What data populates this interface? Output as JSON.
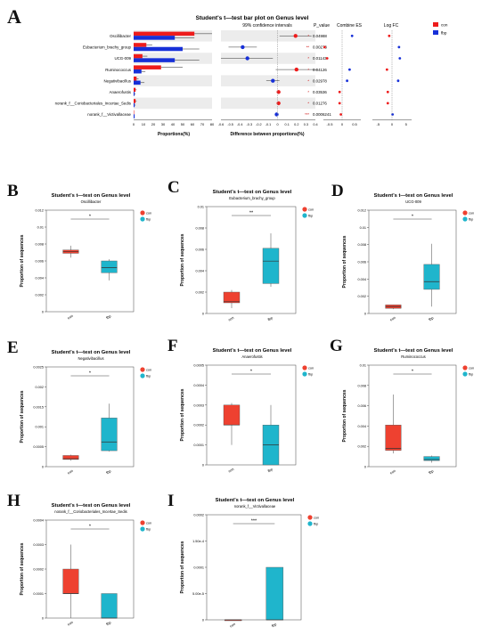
{
  "colors": {
    "con": "#ee4130",
    "fbp": "#1fb5cc",
    "bar_con": "#ee1c1c",
    "bar_fbp": "#1730d8",
    "grid": "#ececec"
  },
  "panel_a": {
    "letter": "A",
    "title": "Student's t—test bar plot on Genus level",
    "ci_title": "99% confidence intervals",
    "legend": {
      "con": "con",
      "fbp": "fbp"
    },
    "col_pvalue": "P_value",
    "col_es": "Combine ES",
    "col_logfc": "Log FC",
    "xlabel_prop": "Proportions(%)",
    "xlabel_diff": "Difference between proportions(%)",
    "prop_ticks": [
      "0",
      "10",
      "20",
      "30",
      "40",
      "50",
      "60",
      "70",
      "80"
    ],
    "diff_ticks": [
      "-0.6",
      "-0.5",
      "-0.4",
      "-0.3",
      "-0.2",
      "-0.1",
      "0",
      "0.1",
      "0.2",
      "0.3",
      "0.4"
    ],
    "es_ticks": [
      "-0.5",
      "0",
      "0.5"
    ],
    "fc_ticks": [
      "-5",
      "0",
      "5"
    ]
  },
  "chart_data": [
    {
      "type": "bar",
      "panel": "A",
      "title": "Student's t—test bar plot on Genus level",
      "xlabel": "Proportions(%)",
      "categories": [
        "Oscillibacter",
        "Eubacterium_brachy_group",
        "UCG-009",
        "Ruminococcus",
        "Negativibacillus",
        "Anaerofustis",
        "norank_f__Coriobacteriales_Incertae_Sedis",
        "norank_f__Victivallaceae"
      ],
      "series": [
        {
          "name": "con",
          "values": [
            62,
            13,
            9,
            28,
            3,
            2,
            2,
            0
          ],
          "err": [
            18,
            6,
            5,
            22,
            2,
            1,
            1,
            0
          ]
        },
        {
          "name": "fbp",
          "values": [
            42,
            50,
            42,
            8,
            7,
            1,
            1,
            1
          ],
          "err": [
            20,
            17,
            25,
            4,
            4,
            1,
            1,
            0
          ]
        }
      ],
      "xlim": [
        0,
        80
      ]
    },
    {
      "type": "scatter",
      "panel": "A",
      "title": "99% confidence intervals",
      "xlabel": "Difference between proportions(%)",
      "categories": [
        "Oscillibacter",
        "Eubacterium_brachy_group",
        "UCG-009",
        "Ruminococcus",
        "Negativibacillus",
        "Anaerofustis",
        "norank_f__Coriobacteriales_Incertae_Sedis",
        "norank_f__Victivallaceae"
      ],
      "diff": [
        0.19,
        -0.37,
        -0.32,
        0.2,
        -0.05,
        0.01,
        0.01,
        -0.01
      ],
      "ci_low": [
        0.02,
        -0.52,
        -0.6,
        -0.02,
        -0.12,
        -0.01,
        -0.01,
        -0.02
      ],
      "ci_high": [
        0.36,
        -0.22,
        -0.05,
        0.42,
        0.02,
        0.03,
        0.03,
        0.0
      ],
      "p_values": [
        "0.04988",
        "0.00273",
        "0.01143",
        "0.04126",
        "0.02978",
        "0.03536",
        "0.01276",
        "0.0006241"
      ],
      "p_marks": [
        "*",
        "**",
        "*",
        "*",
        "*",
        "*",
        "*",
        "***"
      ],
      "combine_es": [
        0.4,
        -0.7,
        -0.6,
        0.3,
        0.2,
        -0.1,
        -0.1,
        -0.05
      ],
      "log_fc": [
        -1.0,
        2.5,
        2.8,
        -1.8,
        2.2,
        -1.5,
        -1.5,
        0.2
      ],
      "xlim": [
        -0.6,
        0.4
      ]
    },
    {
      "type": "box",
      "panel": "B",
      "title": "Student's t—test on Genus level",
      "subtitle": "Oscillibacter",
      "ylabel": "Proportion of sequences",
      "categories": [
        "con",
        "fbp"
      ],
      "signif": "*",
      "yticks": [
        "0",
        "0.002",
        "0.004",
        "0.006",
        "0.008",
        "0.01",
        "0.012"
      ],
      "ylim": [
        0,
        0.012
      ],
      "boxes": [
        {
          "min": 0.0064,
          "q1": 0.0069,
          "median": 0.0071,
          "q3": 0.0073,
          "max": 0.0078
        },
        {
          "min": 0.0037,
          "q1": 0.0046,
          "median": 0.0052,
          "q3": 0.006,
          "max": 0.0062
        }
      ]
    },
    {
      "type": "box",
      "panel": "C",
      "title": "Student's t—test on Genus level",
      "subtitle": "Eubacterium_brachy_group",
      "ylabel": "Proportion of sequences",
      "categories": [
        "con",
        "fbp"
      ],
      "signif": "**",
      "yticks": [
        "0",
        "0.002",
        "0.004",
        "0.006",
        "0.008",
        "0.01"
      ],
      "ylim": [
        0,
        0.01
      ],
      "boxes": [
        {
          "min": 0.0005,
          "q1": 0.001,
          "median": 0.0011,
          "q3": 0.002,
          "max": 0.0022
        },
        {
          "min": 0.0025,
          "q1": 0.0028,
          "median": 0.0049,
          "q3": 0.0061,
          "max": 0.0075
        }
      ]
    },
    {
      "type": "box",
      "panel": "D",
      "title": "Student's t—test on Genus level",
      "subtitle": "UCG-009",
      "ylabel": "Proportion of sequences",
      "categories": [
        "con",
        "fbp"
      ],
      "signif": "*",
      "yticks": [
        "0",
        "0.002",
        "0.004",
        "0.006",
        "0.008",
        "0.01",
        "0.012"
      ],
      "ylim": [
        0,
        0.012
      ],
      "boxes": [
        {
          "min": 0.0005,
          "q1": 0.0006,
          "median": 0.0008,
          "q3": 0.001,
          "max": 0.001
        },
        {
          "min": 0.0008,
          "q1": 0.0028,
          "median": 0.0037,
          "q3": 0.0057,
          "max": 0.0081
        }
      ]
    },
    {
      "type": "box",
      "panel": "E",
      "title": "Student's t—test on Genus level",
      "subtitle": "Negativibacillus",
      "ylabel": "Proportion of sequences",
      "categories": [
        "con",
        "fbp"
      ],
      "signif": "*",
      "yticks": [
        "0",
        "0.0005",
        "0.001",
        "0.0015",
        "0.002",
        "0.0025"
      ],
      "ylim": [
        0,
        0.0025
      ],
      "boxes": [
        {
          "min": 0.00015,
          "q1": 0.00018,
          "median": 0.0002,
          "q3": 0.00028,
          "max": 0.0003
        },
        {
          "min": 0.00038,
          "q1": 0.0004,
          "median": 0.00062,
          "q3": 0.00122,
          "max": 0.00158
        }
      ]
    },
    {
      "type": "box",
      "panel": "F",
      "title": "Student's t—test on Genus level",
      "subtitle": "Anaerofustis",
      "ylabel": "Proportion of sequences",
      "categories": [
        "con",
        "fbp"
      ],
      "signif": "*",
      "yticks": [
        "0",
        "0.0001",
        "0.0002",
        "0.0003",
        "0.0004",
        "0.0005"
      ],
      "ylim": [
        0,
        0.0005
      ],
      "boxes": [
        {
          "min": 0.0001,
          "q1": 0.0002,
          "median": 0.0002,
          "q3": 0.0003,
          "max": 0.00031
        },
        {
          "min": 0.0,
          "q1": 0.0,
          "median": 0.0001,
          "q3": 0.0002,
          "max": 0.0003
        }
      ]
    },
    {
      "type": "box",
      "panel": "G",
      "title": "Student's t—test on Genus level",
      "subtitle": "Ruminococcus",
      "ylabel": "Proportion of sequences",
      "categories": [
        "con",
        "fbp"
      ],
      "signif": "*",
      "yticks": [
        "0",
        "0.002",
        "0.004",
        "0.006",
        "0.008",
        "0.01"
      ],
      "ylim": [
        0,
        0.01
      ],
      "boxes": [
        {
          "min": 0.0013,
          "q1": 0.0016,
          "median": 0.0018,
          "q3": 0.0041,
          "max": 0.0071
        },
        {
          "min": 0.0004,
          "q1": 0.0006,
          "median": 0.0007,
          "q3": 0.001,
          "max": 0.0011
        }
      ]
    },
    {
      "type": "box",
      "panel": "H",
      "title": "Student's t—test on Genus level",
      "subtitle": "norank_f__Coriobacteriales_Incertae_Sedis",
      "ylabel": "Proportion of sequences",
      "categories": [
        "con",
        "fbp"
      ],
      "signif": "*",
      "yticks": [
        "0",
        "0.0001",
        "0.0002",
        "0.0003",
        "0.0004"
      ],
      "ylim": [
        0,
        0.0004
      ],
      "boxes": [
        {
          "min": 0.0,
          "q1": 0.0001,
          "median": 0.0001,
          "q3": 0.0002,
          "max": 0.0003
        },
        {
          "min": 0.0,
          "q1": 0.0,
          "median": 0.0,
          "q3": 0.0001,
          "max": 0.0001
        }
      ]
    },
    {
      "type": "box",
      "panel": "I",
      "title": "Student's t—test on Genus level",
      "subtitle": "norank_f__Victivallaceae",
      "ylabel": "Proportion of sequences",
      "categories": [
        "con",
        "fbp"
      ],
      "signif": "***",
      "yticks": [
        "0",
        "5.00e-5",
        "0.0001",
        "1.50e-4",
        "0.0002"
      ],
      "ylim": [
        0,
        0.0002
      ],
      "boxes": [
        {
          "min": 0.0,
          "q1": 0.0,
          "median": 0.0,
          "q3": 0.0,
          "max": 0.0
        },
        {
          "min": 0.0,
          "q1": 0.0,
          "median": 0.0,
          "q3": 0.0001,
          "max": 0.0001
        }
      ]
    }
  ]
}
